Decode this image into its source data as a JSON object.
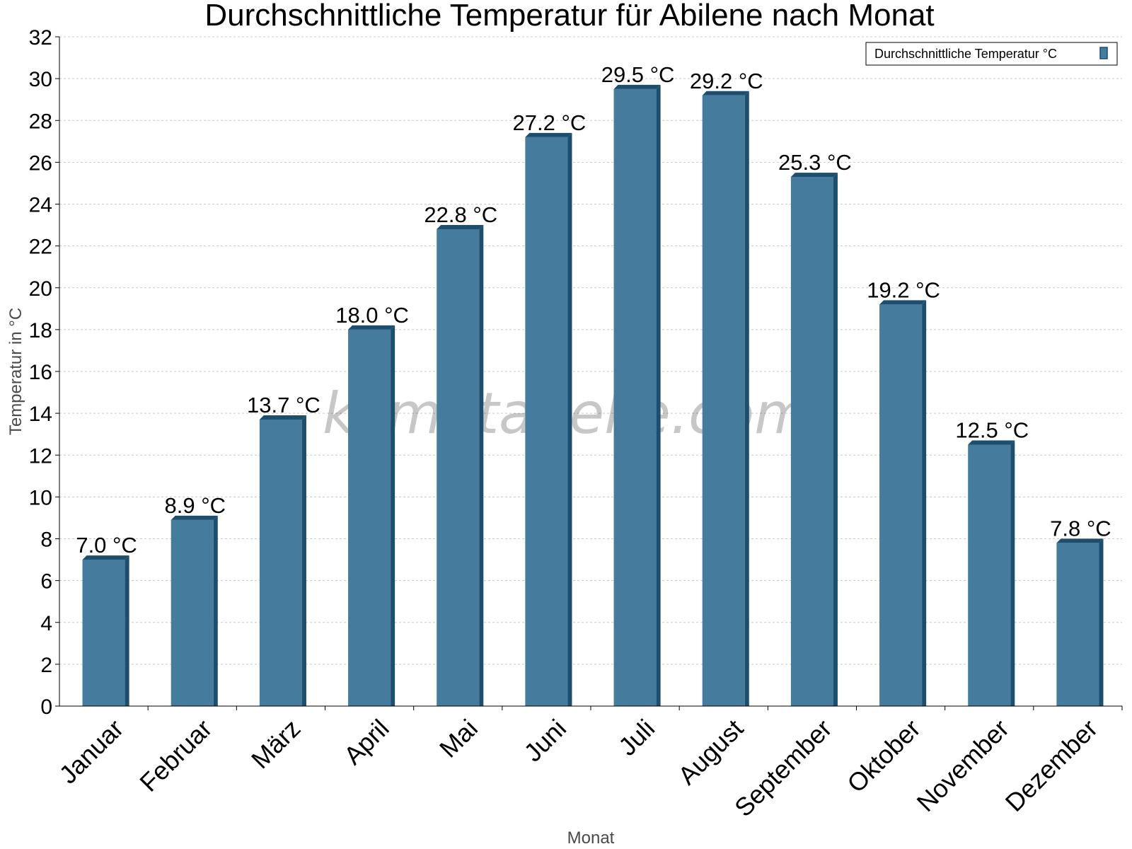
{
  "chart_data": {
    "type": "bar",
    "title": "Durchschnittliche Temperatur für Abilene nach Monat",
    "xlabel": "Monat",
    "ylabel": "Temperatur in °C",
    "ylim": [
      0,
      32
    ],
    "ytick_step": 2,
    "grid": "horizontal-dashed",
    "legend_position": "top-right",
    "watermark": "klimatabelle.com",
    "categories": [
      "Januar",
      "Februar",
      "März",
      "April",
      "Mai",
      "Juni",
      "Juli",
      "August",
      "September",
      "Oktober",
      "November",
      "Dezember"
    ],
    "series": [
      {
        "name": "Durchschnittliche Temperatur °C",
        "color": "#457b9d",
        "shade_color": "#1d4e6e",
        "values": [
          7.0,
          8.9,
          13.7,
          18.0,
          22.8,
          27.2,
          29.5,
          29.2,
          25.3,
          19.2,
          12.5,
          7.8
        ],
        "labels": [
          "7.0 °C",
          "8.9 °C",
          "13.7 °C",
          "18.0 °C",
          "22.8 °C",
          "27.2 °C",
          "29.5 °C",
          "29.2 °C",
          "25.3 °C",
          "19.2 °C",
          "12.5 °C",
          "7.8 °C"
        ]
      }
    ]
  }
}
